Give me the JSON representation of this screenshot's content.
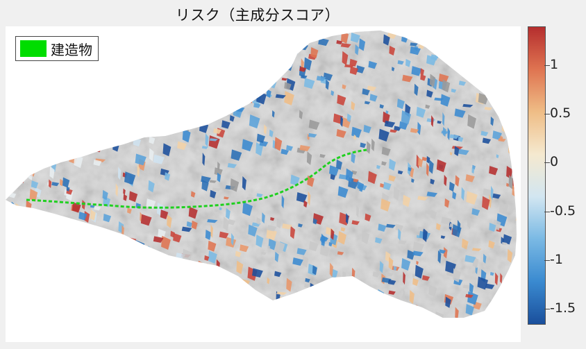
{
  "title": "リスク（主成分スコア）",
  "legend": {
    "label": "建造物",
    "color": "#00dd00"
  },
  "colorbar": {
    "min": -1.65,
    "max": 1.4,
    "colors": [
      "#1a4f9c",
      "#3a8ad0",
      "#7ab9e4",
      "#d2e6f1",
      "#f5e9cf",
      "#efbd86",
      "#df7451",
      "#b52e2e"
    ],
    "ticks": [
      {
        "value": 1,
        "label": "1"
      },
      {
        "value": 0.5,
        "label": "0.5"
      },
      {
        "value": 0,
        "label": "0"
      },
      {
        "value": -0.5,
        "label": "-0.5"
      },
      {
        "value": -1,
        "label": "-1"
      },
      {
        "value": -1.5,
        "label": "-1.5"
      }
    ]
  }
}
